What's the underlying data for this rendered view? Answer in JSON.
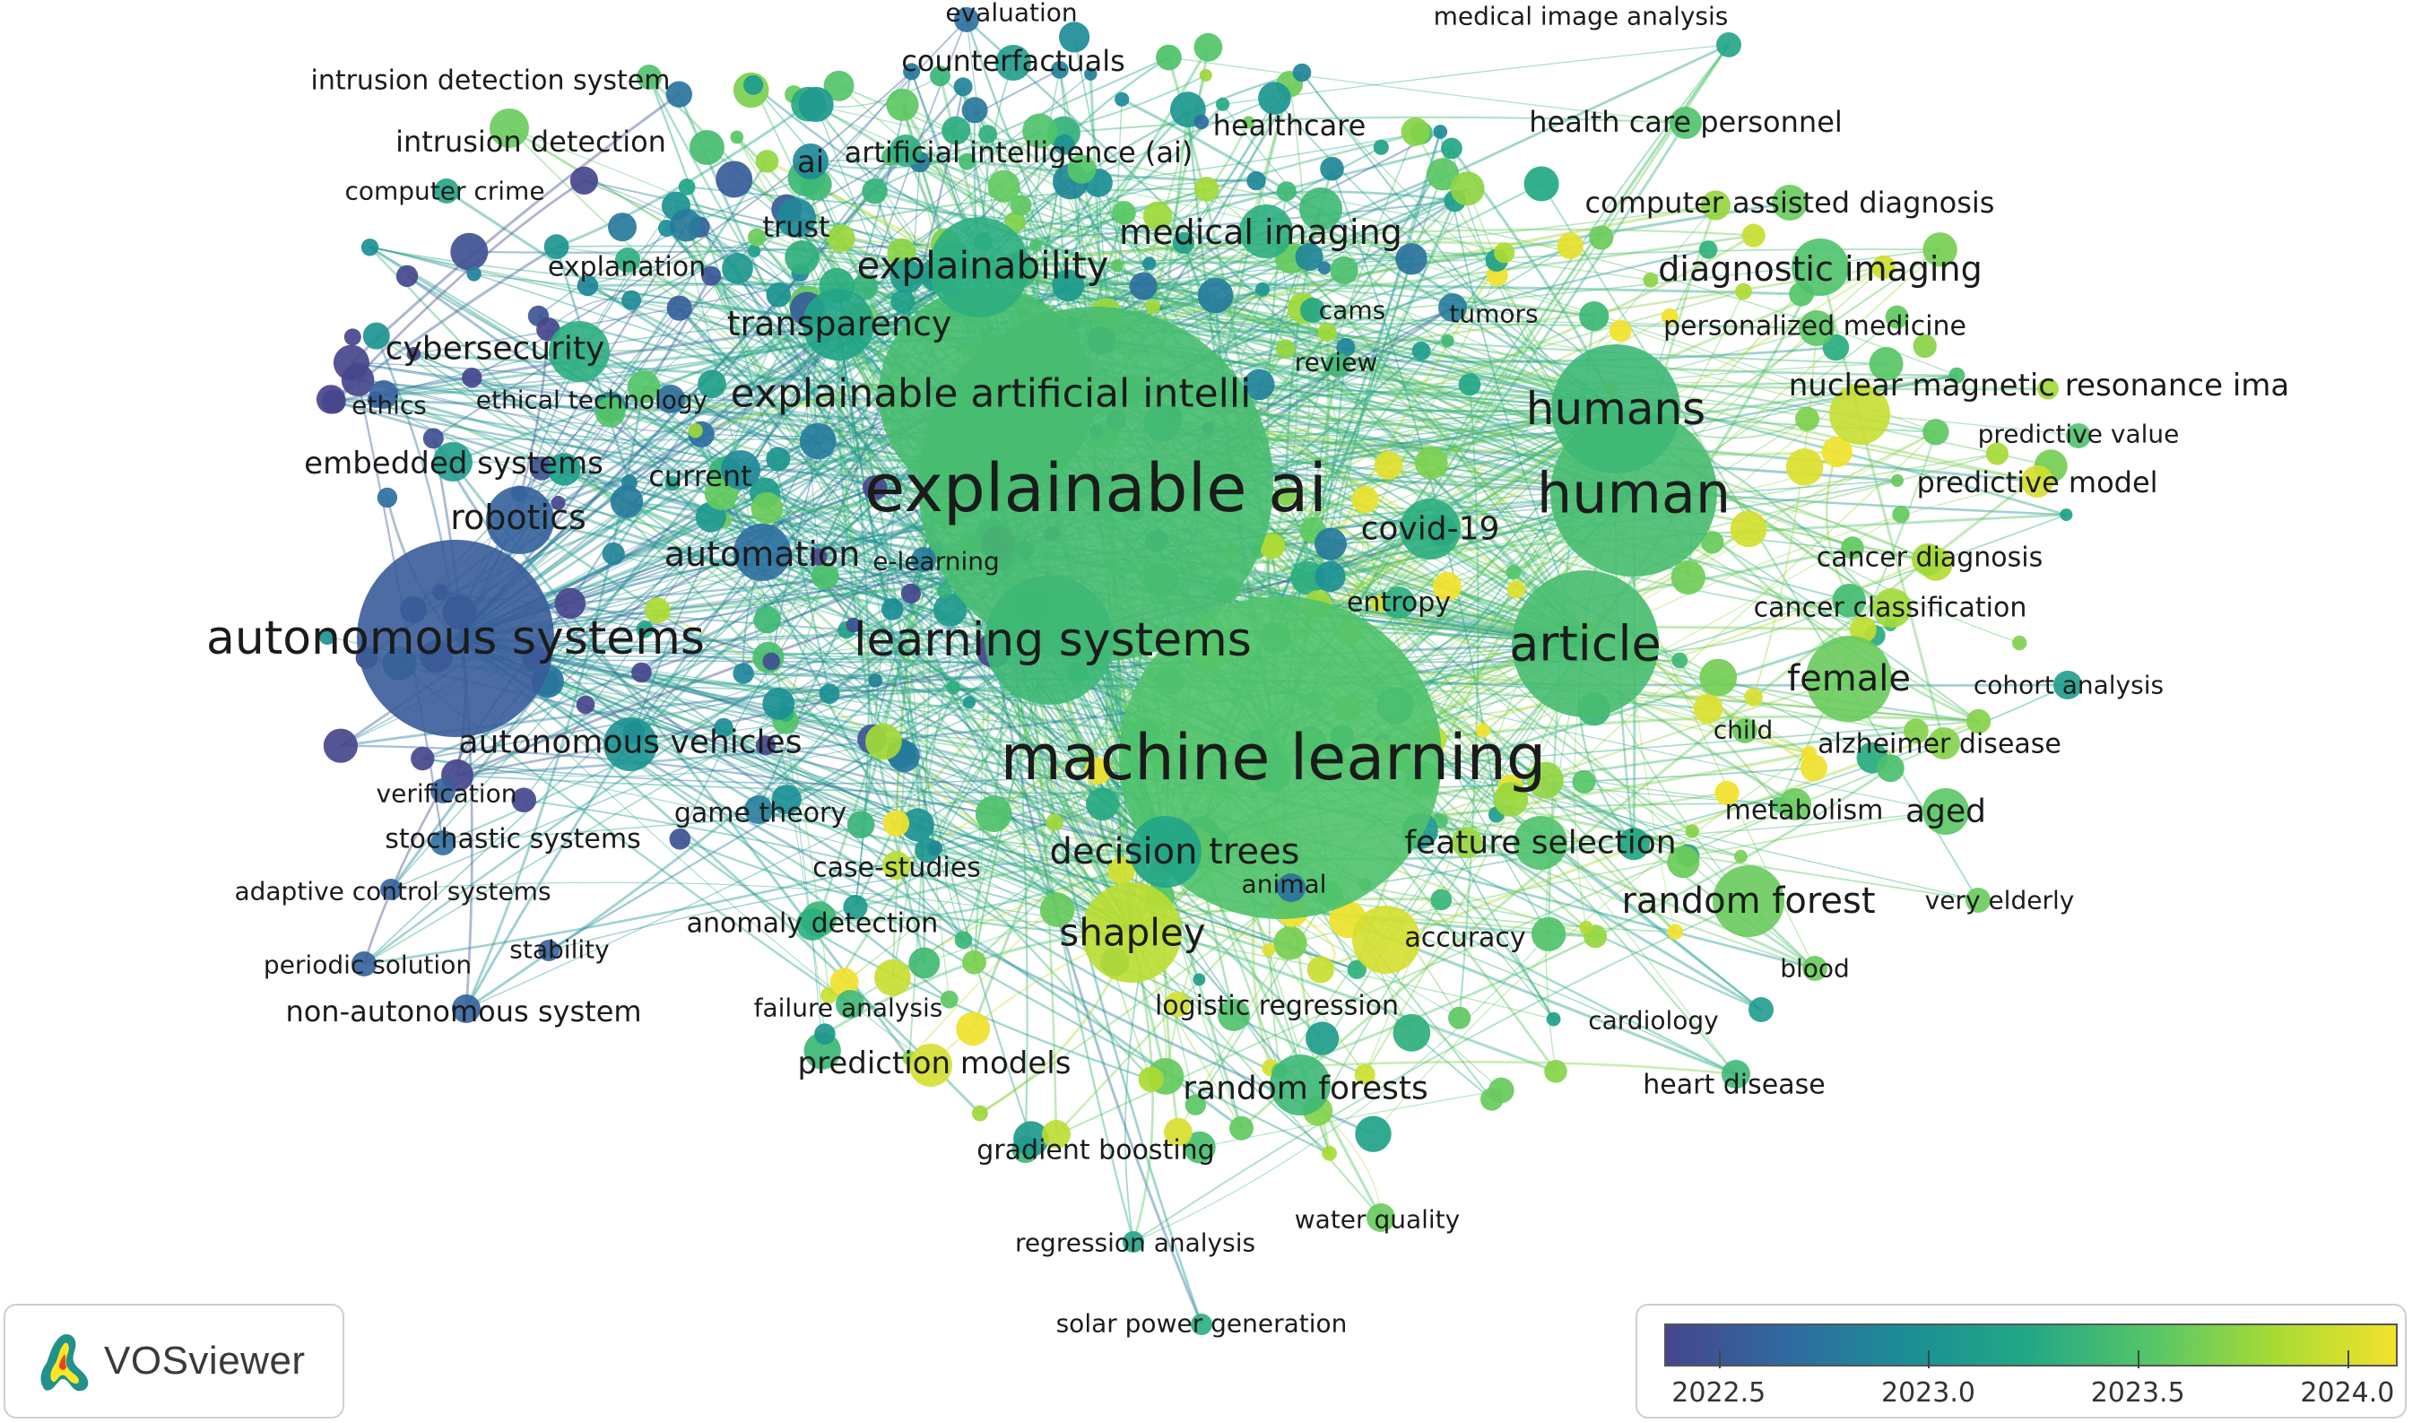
{
  "app": {
    "name": "VOSviewer"
  },
  "color_scale": {
    "colors": [
      "#46468d",
      "#2f6aa0",
      "#1b8f95",
      "#22a884",
      "#56c667",
      "#a8db34",
      "#f2e22c"
    ],
    "ticks": [
      {
        "value": 2022.5,
        "label": "2022.5"
      },
      {
        "value": 2023.0,
        "label": "2023.0"
      },
      {
        "value": 2023.5,
        "label": "2023.5"
      },
      {
        "value": 2024.0,
        "label": "2024.0"
      }
    ],
    "min": 2022.37,
    "max": 2024.12
  },
  "nodes": [
    {
      "label": "explainable ai",
      "score": 2023.45,
      "weight": 100
    },
    {
      "label": "machine learning",
      "score": 2023.5,
      "weight": 96
    },
    {
      "label": "autonomous systems",
      "score": 2022.55,
      "weight": 55
    },
    {
      "label": "human",
      "score": 2023.45,
      "weight": 48
    },
    {
      "label": "humans",
      "score": 2023.4,
      "weight": 40
    },
    {
      "label": "article",
      "score": 2023.45,
      "weight": 42
    },
    {
      "label": "learning systems",
      "score": 2023.4,
      "weight": 38
    },
    {
      "label": "explainable artificial intelli",
      "score": 2023.45,
      "weight": 60
    },
    {
      "label": "explainability",
      "score": 2023.3,
      "weight": 34
    },
    {
      "label": "transparency",
      "score": 2023.2,
      "weight": 26
    },
    {
      "label": "decision trees",
      "score": 2023.2,
      "weight": 26
    },
    {
      "label": "shapley",
      "score": 2023.9,
      "weight": 36
    },
    {
      "label": "random forest",
      "score": 2023.6,
      "weight": 28
    },
    {
      "label": "random forests",
      "score": 2023.4,
      "weight": 24
    },
    {
      "label": "female",
      "score": 2023.6,
      "weight": 32
    },
    {
      "label": "aged",
      "score": 2023.55,
      "weight": 22
    },
    {
      "label": "diagnostic imaging",
      "score": 2023.5,
      "weight": 24
    },
    {
      "label": "medical imaging",
      "score": 2023.3,
      "weight": 22
    },
    {
      "label": "covid-19",
      "score": 2023.3,
      "weight": 22
    },
    {
      "label": "feature selection",
      "score": 2023.5,
      "weight": 22
    },
    {
      "label": "autonomous vehicles",
      "score": 2023.0,
      "weight": 22
    },
    {
      "label": "robotics",
      "score": 2022.6,
      "weight": 22
    },
    {
      "label": "cybersecurity",
      "score": 2023.3,
      "weight": 22
    },
    {
      "label": "automation",
      "score": 2022.7,
      "weight": 22
    },
    {
      "label": "prediction models",
      "score": 2024.0,
      "weight": 16
    },
    {
      "label": "nuclear magnetic resonance ima",
      "score": 2023.95,
      "weight": 20
    },
    {
      "label": "predictive model",
      "score": 2024.0,
      "weight": 14
    },
    {
      "label": "cancer diagnosis",
      "score": 2023.8,
      "weight": 14
    },
    {
      "label": "cancer classification",
      "score": 2023.8,
      "weight": 14
    },
    {
      "label": "alzheimer disease",
      "score": 2023.7,
      "weight": 14
    },
    {
      "label": "cohort analysis",
      "score": 2023.1,
      "weight": 12
    },
    {
      "label": "predictive value",
      "score": 2023.5,
      "weight": 12
    },
    {
      "label": "personalized medicine",
      "score": 2023.55,
      "weight": 14
    },
    {
      "label": "computer assisted diagnosis",
      "score": 2023.6,
      "weight": 14
    },
    {
      "label": "health care personnel",
      "score": 2023.5,
      "weight": 14
    },
    {
      "label": "medical image analysis",
      "score": 2023.2,
      "weight": 12
    },
    {
      "label": "healthcare",
      "score": 2023.4,
      "weight": 14
    },
    {
      "label": "evaluation",
      "score": 2022.7,
      "weight": 12
    },
    {
      "label": "counterfactuals",
      "score": 2023.1,
      "weight": 14
    },
    {
      "label": "artificial intelligence (ai)",
      "score": 2023.3,
      "weight": 14
    },
    {
      "label": "ai",
      "score": 2022.9,
      "weight": 16
    },
    {
      "label": "trust",
      "score": 2022.9,
      "weight": 16
    },
    {
      "label": "intrusion detection system",
      "score": 2023.5,
      "weight": 12
    },
    {
      "label": "intrusion detection",
      "score": 2023.6,
      "weight": 16
    },
    {
      "label": "computer crime",
      "score": 2023.2,
      "weight": 12
    },
    {
      "label": "explanation",
      "score": 2023.3,
      "weight": 12
    },
    {
      "label": "ethics",
      "score": 2022.6,
      "weight": 12
    },
    {
      "label": "ethical technology",
      "score": 2022.7,
      "weight": 12
    },
    {
      "label": "embedded systems",
      "score": 2023.1,
      "weight": 16
    },
    {
      "label": "current",
      "score": 2022.9,
      "weight": 14
    },
    {
      "label": "e-learning",
      "score": 2022.8,
      "weight": 12
    },
    {
      "label": "cams",
      "score": 2023.2,
      "weight": 10
    },
    {
      "label": "review",
      "score": 2023.4,
      "weight": 10
    },
    {
      "label": "tumors",
      "score": 2022.8,
      "weight": 10
    },
    {
      "label": "entropy",
      "score": 2023.3,
      "weight": 12
    },
    {
      "label": "child",
      "score": 2023.6,
      "weight": 10
    },
    {
      "label": "metabolism",
      "score": 2023.6,
      "weight": 12
    },
    {
      "label": "very elderly",
      "score": 2023.6,
      "weight": 10
    },
    {
      "label": "blood",
      "score": 2023.6,
      "weight": 10
    },
    {
      "label": "cardiology",
      "score": 2023.1,
      "weight": 10
    },
    {
      "label": "heart disease",
      "score": 2023.4,
      "weight": 12
    },
    {
      "label": "animal",
      "score": 2022.7,
      "weight": 10
    },
    {
      "label": "accuracy",
      "score": 2024.0,
      "weight": 30
    },
    {
      "label": "logistic regression",
      "score": 2023.5,
      "weight": 14
    },
    {
      "label": "gradient boosting",
      "score": 2023.9,
      "weight": 12
    },
    {
      "label": "regression analysis",
      "score": 2023.2,
      "weight": 10
    },
    {
      "label": "water quality",
      "score": 2023.6,
      "weight": 12
    },
    {
      "label": "solar power generation",
      "score": 2023.3,
      "weight": 10
    },
    {
      "label": "failure analysis",
      "score": 2023.4,
      "weight": 12
    },
    {
      "label": "anomaly detection",
      "score": 2023.3,
      "weight": 14
    },
    {
      "label": "case-studies",
      "score": 2023.9,
      "weight": 12
    },
    {
      "label": "game theory",
      "score": 2022.8,
      "weight": 12
    },
    {
      "label": "verification",
      "score": 2022.6,
      "weight": 12
    },
    {
      "label": "stochastic systems",
      "score": 2022.7,
      "weight": 12
    },
    {
      "label": "adaptive control systems",
      "score": 2022.6,
      "weight": 10
    },
    {
      "label": "stability",
      "score": 2022.6,
      "weight": 10
    },
    {
      "label": "periodic solution",
      "score": 2022.6,
      "weight": 10
    },
    {
      "label": "non-autonomous system",
      "score": 2022.6,
      "weight": 12
    }
  ]
}
